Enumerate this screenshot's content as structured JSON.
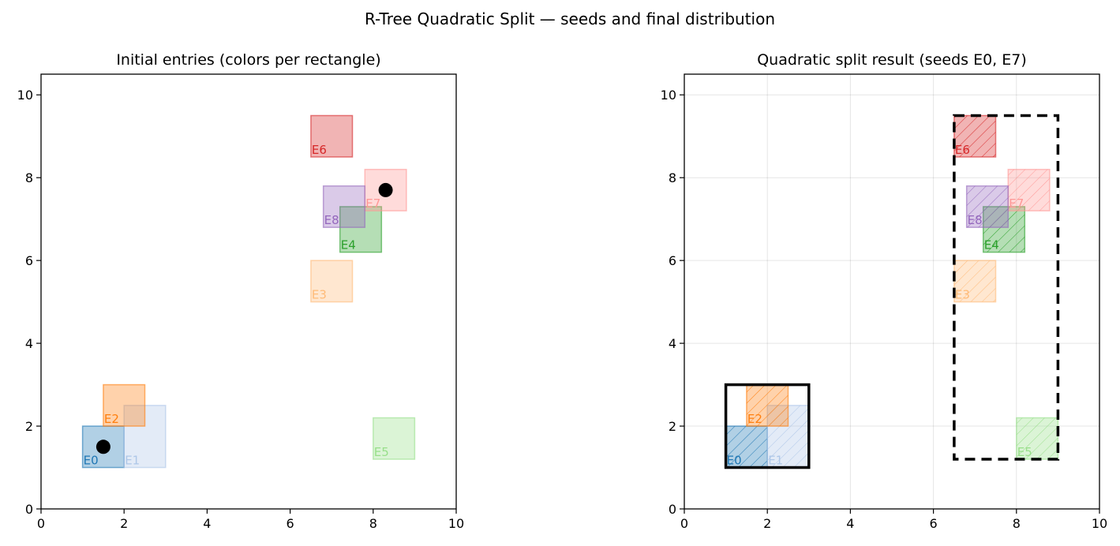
{
  "figure": {
    "title": "R-Tree Quadratic Split — seeds and final distribution"
  },
  "chart_data": [
    {
      "type": "rectangles",
      "title": "Initial entries (colors per rectangle)",
      "xlim": [
        0,
        10
      ],
      "ylim": [
        0,
        10.5
      ],
      "xticks": [
        0,
        2,
        4,
        6,
        8,
        10
      ],
      "yticks": [
        0,
        2,
        4,
        6,
        8,
        10
      ],
      "grid": false,
      "entries": [
        {
          "label": "E0",
          "x0": 1.0,
          "y0": 1.0,
          "x1": 2.0,
          "y1": 2.0,
          "color": "#1f77b4"
        },
        {
          "label": "E1",
          "x0": 2.0,
          "y0": 1.0,
          "x1": 3.0,
          "y1": 2.5,
          "color": "#aec7e8"
        },
        {
          "label": "E2",
          "x0": 1.5,
          "y0": 2.0,
          "x1": 2.5,
          "y1": 3.0,
          "color": "#ff7f0e"
        },
        {
          "label": "E3",
          "x0": 6.5,
          "y0": 5.0,
          "x1": 7.5,
          "y1": 6.0,
          "color": "#ffbb78"
        },
        {
          "label": "E4",
          "x0": 7.2,
          "y0": 6.2,
          "x1": 8.2,
          "y1": 7.3,
          "color": "#2ca02c"
        },
        {
          "label": "E5",
          "x0": 8.0,
          "y0": 1.2,
          "x1": 9.0,
          "y1": 2.2,
          "color": "#98df8a"
        },
        {
          "label": "E6",
          "x0": 6.5,
          "y0": 8.5,
          "x1": 7.5,
          "y1": 9.5,
          "color": "#d62728"
        },
        {
          "label": "E7",
          "x0": 7.8,
          "y0": 7.2,
          "x1": 8.8,
          "y1": 8.2,
          "color": "#ff9896"
        },
        {
          "label": "E8",
          "x0": 6.8,
          "y0": 6.8,
          "x1": 7.8,
          "y1": 7.8,
          "color": "#9467bd"
        }
      ],
      "seed_points": [
        {
          "x": 1.5,
          "y": 1.5
        },
        {
          "x": 8.3,
          "y": 7.7
        }
      ]
    },
    {
      "type": "rectangles",
      "title": "Quadratic split result (seeds E0, E7)",
      "xlim": [
        0,
        10
      ],
      "ylim": [
        0,
        10.5
      ],
      "xticks": [
        0,
        2,
        4,
        6,
        8,
        10
      ],
      "yticks": [
        0,
        2,
        4,
        6,
        8,
        10
      ],
      "grid": true,
      "entries": [
        {
          "label": "E0",
          "x0": 1.0,
          "y0": 1.0,
          "x1": 2.0,
          "y1": 2.0,
          "color": "#1f77b4",
          "group": 1
        },
        {
          "label": "E1",
          "x0": 2.0,
          "y0": 1.0,
          "x1": 3.0,
          "y1": 2.5,
          "color": "#aec7e8",
          "group": 1
        },
        {
          "label": "E2",
          "x0": 1.5,
          "y0": 2.0,
          "x1": 2.5,
          "y1": 3.0,
          "color": "#ff7f0e",
          "group": 1
        },
        {
          "label": "E3",
          "x0": 6.5,
          "y0": 5.0,
          "x1": 7.5,
          "y1": 6.0,
          "color": "#ffbb78",
          "group": 2
        },
        {
          "label": "E4",
          "x0": 7.2,
          "y0": 6.2,
          "x1": 8.2,
          "y1": 7.3,
          "color": "#2ca02c",
          "group": 2
        },
        {
          "label": "E5",
          "x0": 8.0,
          "y0": 1.2,
          "x1": 9.0,
          "y1": 2.2,
          "color": "#98df8a",
          "group": 2
        },
        {
          "label": "E6",
          "x0": 6.5,
          "y0": 8.5,
          "x1": 7.5,
          "y1": 9.5,
          "color": "#d62728",
          "group": 2
        },
        {
          "label": "E7",
          "x0": 7.8,
          "y0": 7.2,
          "x1": 8.8,
          "y1": 8.2,
          "color": "#ff9896",
          "group": 2
        },
        {
          "label": "E8",
          "x0": 6.8,
          "y0": 6.8,
          "x1": 7.8,
          "y1": 7.8,
          "color": "#9467bd",
          "group": 2
        }
      ],
      "group_mbrs": [
        {
          "group": 1,
          "x0": 1.0,
          "y0": 1.0,
          "x1": 3.0,
          "y1": 3.0,
          "style": "solid"
        },
        {
          "group": 2,
          "x0": 6.5,
          "y0": 1.2,
          "x1": 9.0,
          "y1": 9.5,
          "style": "dashed"
        }
      ]
    }
  ]
}
